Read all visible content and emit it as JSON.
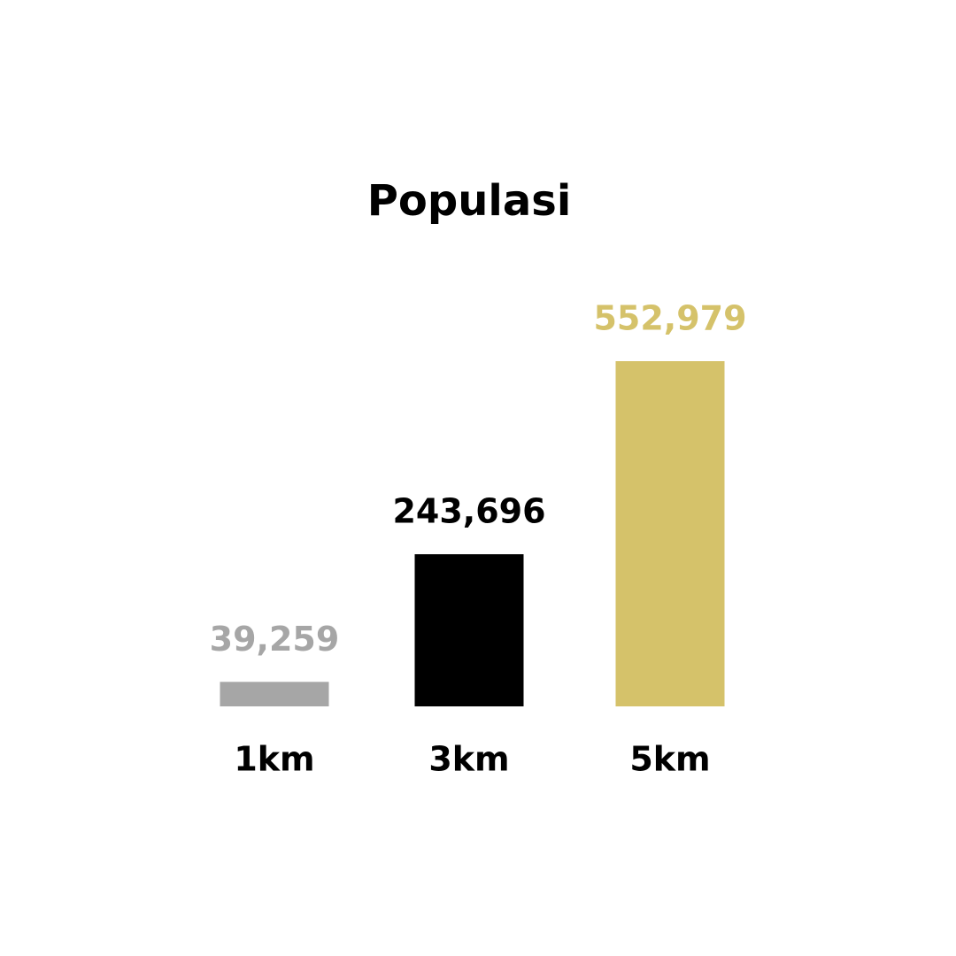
{
  "chart_data": {
    "type": "bar",
    "title": "Populasi",
    "categories": [
      "1km",
      "3km",
      "5km"
    ],
    "values": [
      39259,
      243696,
      552979
    ],
    "value_labels": [
      "39,259",
      "243,696",
      "552,979"
    ],
    "colors": [
      "#a6a6a6",
      "#000000",
      "#d5c26a"
    ]
  }
}
